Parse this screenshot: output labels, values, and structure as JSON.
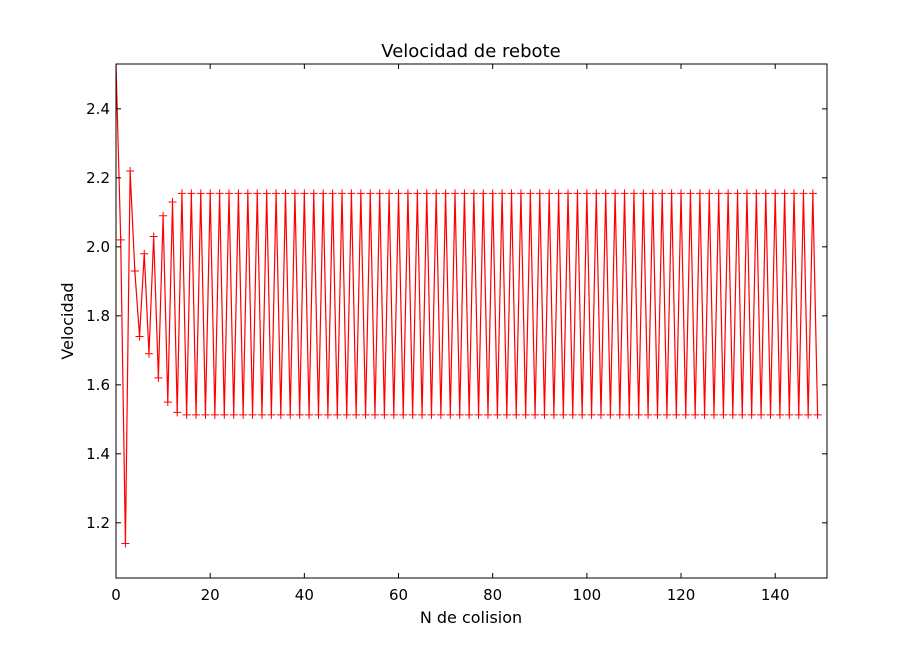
{
  "chart_data": {
    "type": "line",
    "title": "Velocidad de rebote",
    "xlabel": "N de colision",
    "ylabel": "Velocidad",
    "xlim": [
      0,
      151
    ],
    "ylim": [
      1.04,
      2.53
    ],
    "x_ticks": [
      0,
      20,
      40,
      60,
      80,
      100,
      120,
      140
    ],
    "y_ticks": [
      1.2,
      1.4,
      1.6,
      1.8,
      2.0,
      2.2,
      2.4
    ],
    "grid": false,
    "marker": "+",
    "series": [
      {
        "color": "#ff0000",
        "initial_values": [
          2.53,
          2.02,
          1.14,
          2.22,
          1.93,
          1.74,
          1.98,
          1.69,
          2.03,
          1.62,
          2.09,
          1.55,
          2.13,
          1.52
        ],
        "steady_state": {
          "from_index": 14,
          "to_index": 149,
          "even_value": 2.155,
          "odd_value": 1.513
        }
      }
    ]
  }
}
